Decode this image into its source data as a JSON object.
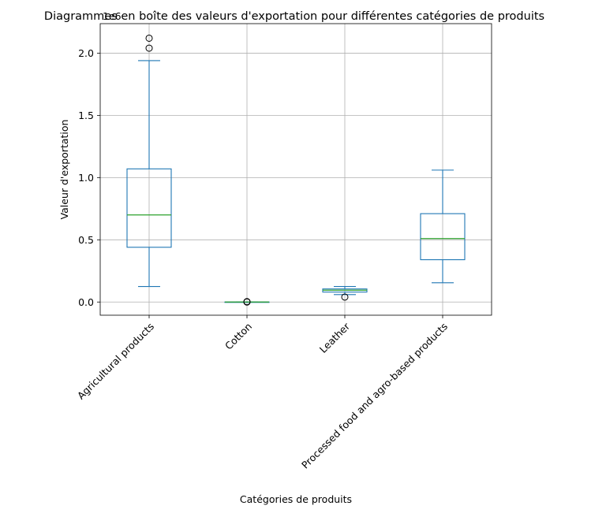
{
  "chart_data": {
    "type": "box",
    "title": "Diagrammes en boîte des valeurs d'exportation pour différentes catégories de produits",
    "xlabel": "Catégories de produits",
    "ylabel": "Valeur d'exportation",
    "y_multiplier": "1e6",
    "ylim": [
      -0.106,
      2.237
    ],
    "yticks": [
      "0.0",
      "0.5",
      "1.0",
      "1.5",
      "2.0"
    ],
    "ytick_values": [
      0.0,
      0.5,
      1.0,
      1.5,
      2.0
    ],
    "grid": true,
    "categories": [
      "Agricultural products",
      "Cotton",
      "Leather",
      "Processed food and agro-based products"
    ],
    "boxes": [
      {
        "whisker_low": 0.125,
        "q1": 0.44,
        "median": 0.7,
        "q3": 1.07,
        "whisker_high": 1.94,
        "outliers": [
          2.04,
          2.12
        ]
      },
      {
        "whisker_low": 0.0,
        "q1": 0.0,
        "median": 0.0,
        "q3": 0.0,
        "whisker_high": 0.0,
        "outliers": [
          0.0,
          0.003
        ]
      },
      {
        "whisker_low": 0.06,
        "q1": 0.08,
        "median": 0.095,
        "q3": 0.105,
        "whisker_high": 0.125,
        "outliers": [
          0.04
        ]
      },
      {
        "whisker_low": 0.155,
        "q1": 0.34,
        "median": 0.51,
        "q3": 0.71,
        "whisker_high": 1.06,
        "outliers": []
      }
    ],
    "colors": {
      "box": "#1f77b4",
      "median": "#2ca02c",
      "grid": "#b0b0b0",
      "outlier": "#000000"
    }
  }
}
